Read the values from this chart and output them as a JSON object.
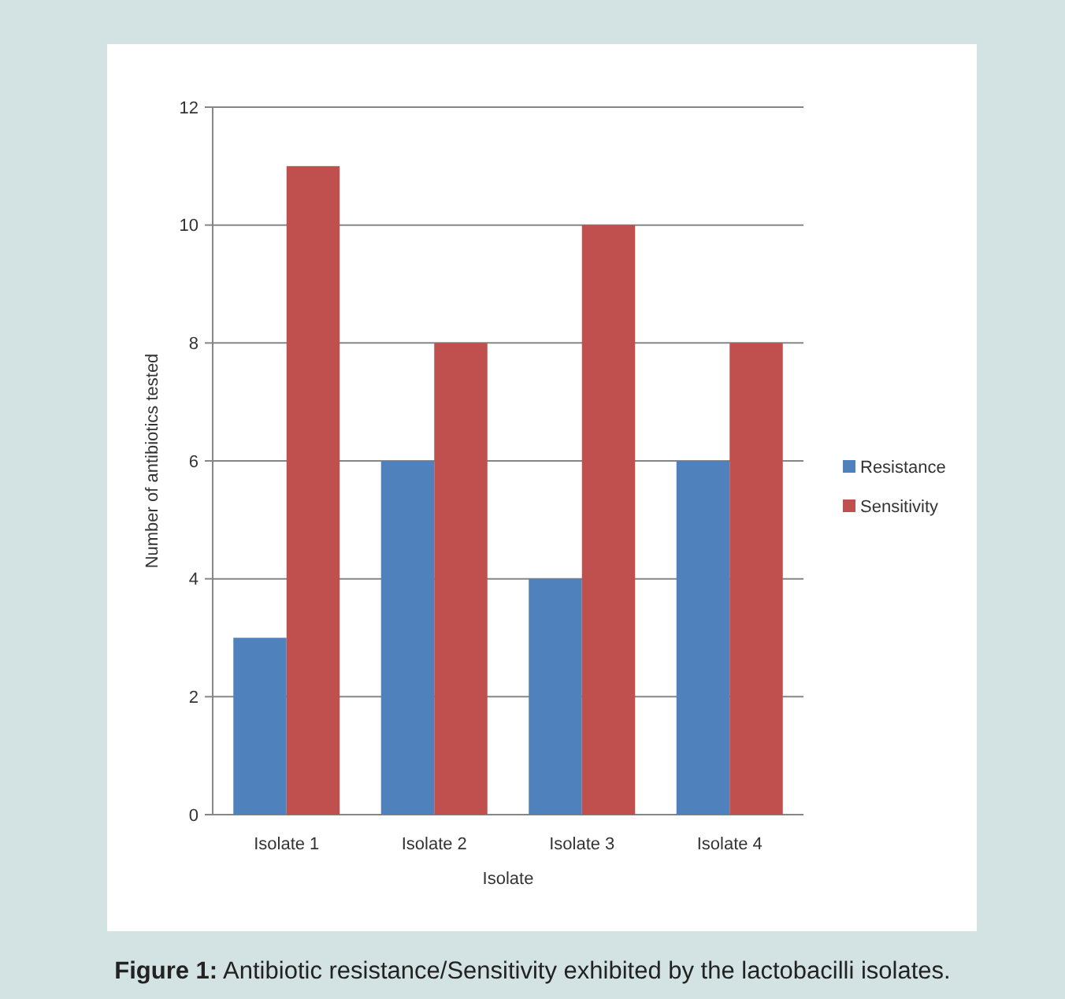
{
  "chart_data": {
    "type": "bar",
    "xlabel": "Isolate",
    "ylabel": "Number of antibiotics tested",
    "categories": [
      "Isolate 1",
      "Isolate 2",
      "Isolate 3",
      "Isolate 4"
    ],
    "series": [
      {
        "name": "Resistance",
        "color": "#4f81bd",
        "values": [
          3,
          6,
          4,
          6
        ]
      },
      {
        "name": "Sensitivity",
        "color": "#c0504d",
        "values": [
          11,
          8,
          10,
          8
        ]
      }
    ],
    "ylim": [
      0,
      12
    ],
    "yticks": [
      0,
      2,
      4,
      6,
      8,
      10,
      12
    ],
    "grid": "y",
    "legend": "right",
    "annotations": [
      "Figure 1: Antibiotic resistance/Sensitivity exhibited by the lactobacilli isolates."
    ]
  }
}
